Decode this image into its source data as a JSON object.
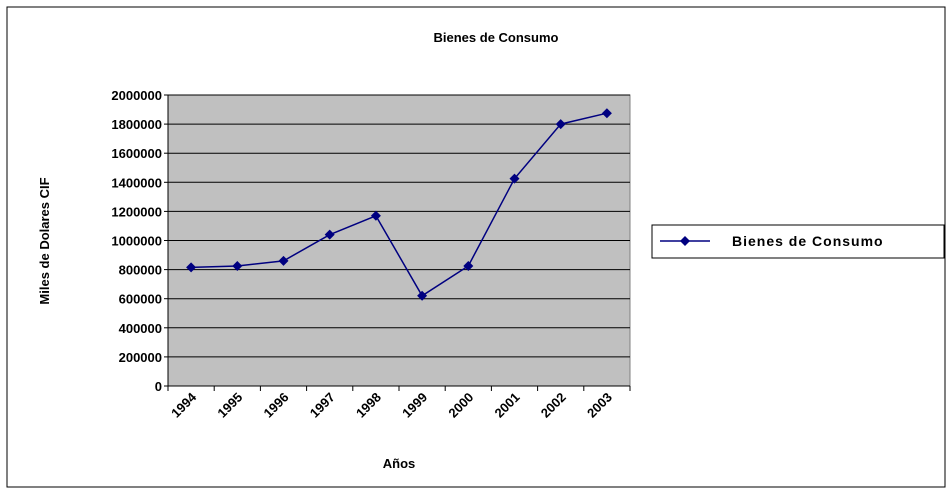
{
  "chart_data": {
    "type": "line",
    "title": "Bienes de Consumo",
    "x_label": "Años",
    "y_label": "Miles de Dolares CIF",
    "categories": [
      "1994",
      "1995",
      "1996",
      "1997",
      "1998",
      "1999",
      "2000",
      "2001",
      "2002",
      "2003"
    ],
    "series": [
      {
        "name": "Bienes de Consumo",
        "color": "#000080",
        "values": [
          815000,
          825000,
          860000,
          1040000,
          1170000,
          620000,
          825000,
          1425000,
          1800000,
          1875000
        ]
      }
    ],
    "ylim": [
      0,
      2000000
    ],
    "yticks": [
      0,
      200000,
      400000,
      600000,
      800000,
      1000000,
      1200000,
      1400000,
      1600000,
      1800000,
      2000000
    ],
    "grid": true,
    "legend": "right",
    "plot_background": "#c0c0c0"
  }
}
